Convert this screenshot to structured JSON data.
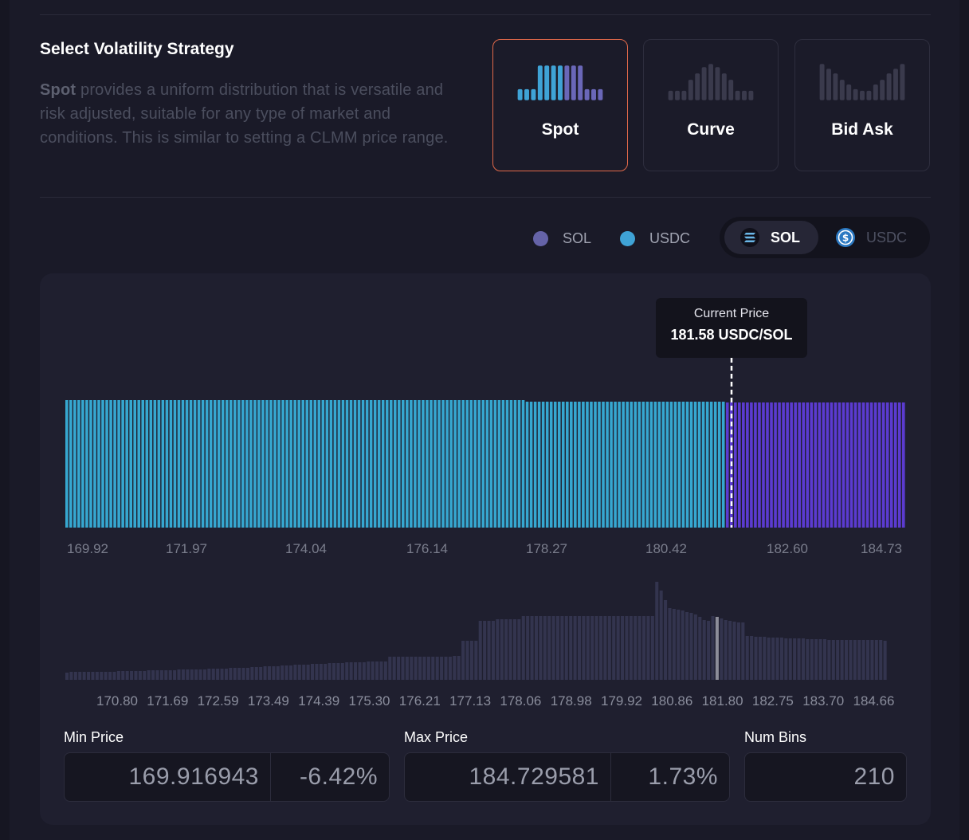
{
  "strategy": {
    "title": "Select Volatility Strategy",
    "desc_strong": "Spot",
    "desc_rest": " provides a uniform distribution that is versatile and risk adjusted, suitable for any type of market and conditions. This is similar to setting a CLMM price range.",
    "options": [
      {
        "label": "Spot",
        "selected": true
      },
      {
        "label": "Curve",
        "selected": false
      },
      {
        "label": "Bid Ask",
        "selected": false
      }
    ]
  },
  "legend": {
    "sol": {
      "label": "SOL",
      "color": "#6563a8"
    },
    "usdc": {
      "label": "USDC",
      "color": "#3fa3d6"
    }
  },
  "token_toggle": {
    "active": {
      "label": "SOL",
      "icon": "solana-icon"
    },
    "inactive": {
      "label": "USDC",
      "icon": "usdc-icon"
    }
  },
  "tooltip": {
    "title": "Current Price",
    "value": "181.58 USDC/SOL"
  },
  "chart_data": [
    {
      "type": "bar",
      "description_role": "liquidity distribution",
      "series": [
        {
          "name": "USDC",
          "color": "#36a7d0",
          "x_range": [
            169.92,
            181.58
          ],
          "value": 1
        },
        {
          "name": "SOL",
          "color": "#5b3bd0",
          "x_range": [
            181.58,
            184.73
          ],
          "value": 1
        }
      ],
      "current_price": 181.58,
      "num_bins": 210,
      "xtick_labels": [
        "169.92",
        "171.97",
        "174.04",
        "176.14",
        "178.27",
        "180.42",
        "182.60",
        "184.73"
      ]
    },
    {
      "type": "bar",
      "description_role": "pool liquidity overview",
      "color": "#33344e",
      "highlight_color": "#8c8d99",
      "current_price": 181.58,
      "x_range": [
        169.92,
        184.66
      ],
      "values": [
        9,
        10,
        10,
        10,
        10,
        10,
        10,
        10,
        10,
        10,
        10,
        10,
        11,
        11,
        11,
        11,
        11,
        11,
        11,
        12,
        12,
        12,
        12,
        12,
        12,
        12,
        13,
        13,
        13,
        13,
        13,
        13,
        13,
        14,
        14,
        14,
        14,
        14,
        15,
        15,
        15,
        15,
        15,
        16,
        16,
        16,
        17,
        17,
        17,
        17,
        18,
        18,
        18,
        19,
        19,
        19,
        19,
        20,
        20,
        20,
        20,
        21,
        21,
        21,
        21,
        22,
        22,
        22,
        22,
        22,
        23,
        23,
        23,
        23,
        23,
        29,
        29,
        29,
        29,
        29,
        29,
        29,
        29,
        29,
        29,
        29,
        29,
        29,
        29,
        29,
        30,
        30,
        49,
        49,
        49,
        49,
        74,
        74,
        74,
        74,
        76,
        76,
        76,
        76,
        76,
        76,
        80,
        80,
        80,
        80,
        80,
        80,
        80,
        80,
        80,
        80,
        80,
        80,
        80,
        80,
        80,
        80,
        80,
        80,
        80,
        80,
        80,
        80,
        80,
        80,
        80,
        80,
        80,
        80,
        80,
        80,
        80,
        123,
        112,
        100,
        90,
        89,
        88,
        87,
        85,
        84,
        82,
        79,
        75,
        74,
        80,
        79,
        77,
        75,
        74,
        73,
        72,
        72,
        55,
        55,
        54,
        54,
        54,
        53,
        53,
        53,
        53,
        52,
        52,
        52,
        52,
        52,
        51,
        51,
        51,
        51,
        51,
        50,
        50,
        50,
        50,
        50,
        50,
        50,
        50,
        50,
        50,
        50,
        50,
        50,
        49
      ],
      "xtick_labels": [
        "170.80",
        "171.69",
        "172.59",
        "173.49",
        "174.39",
        "175.30",
        "176.21",
        "177.13",
        "178.06",
        "178.98",
        "179.92",
        "180.86",
        "181.80",
        "182.75",
        "183.70",
        "184.66"
      ]
    }
  ],
  "fields": {
    "min_price": {
      "label": "Min Price",
      "value": "169.916943",
      "pct": "-6.42%"
    },
    "max_price": {
      "label": "Max Price",
      "value": "184.729581",
      "pct": "1.73%"
    },
    "num_bins": {
      "label": "Num Bins",
      "value": "210"
    }
  }
}
